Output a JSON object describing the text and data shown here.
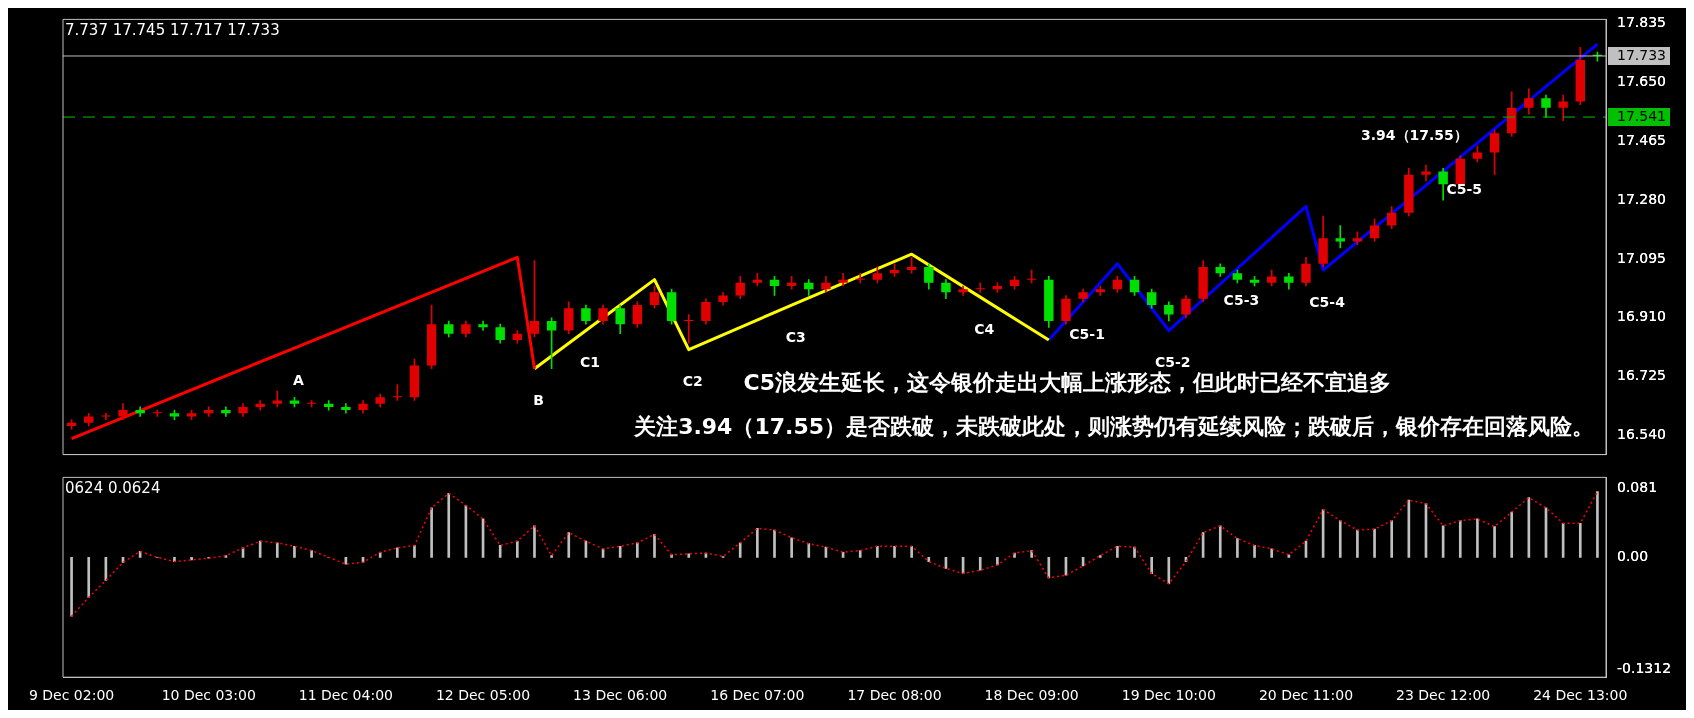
{
  "chart_data": [
    {
      "type": "candlestick",
      "tick_labels": "y",
      "grid": false,
      "legend": false,
      "categories": [
        null,
        null,
        null,
        null,
        null,
        null,
        null,
        null,
        null,
        null,
        null,
        null,
        null,
        null,
        null,
        null,
        null,
        null,
        null,
        null,
        null,
        null,
        null,
        null,
        null,
        null,
        null,
        null,
        null,
        null,
        null,
        null,
        null,
        null,
        null,
        null,
        null,
        null,
        null,
        null,
        null,
        null,
        null,
        null,
        null,
        null,
        null,
        null,
        null,
        null,
        null,
        null,
        null,
        null,
        null,
        null,
        null,
        null,
        null,
        null,
        null,
        null,
        null,
        null,
        null,
        null,
        null,
        null,
        null,
        null,
        null,
        null,
        null,
        null,
        null,
        null,
        null,
        null,
        null,
        null,
        null,
        null,
        null,
        null,
        null,
        null,
        null,
        null,
        null,
        null
      ],
      "ohlc": [
        [
          16.57,
          16.59,
          16.56,
          16.58
        ],
        [
          16.58,
          16.61,
          16.57,
          16.6
        ],
        [
          16.6,
          16.61,
          16.59,
          16.6
        ],
        [
          16.6,
          16.64,
          16.59,
          16.62
        ],
        [
          16.62,
          16.63,
          16.6,
          16.61
        ],
        [
          16.61,
          16.62,
          16.6,
          16.61
        ],
        [
          16.61,
          16.62,
          16.59,
          16.6
        ],
        [
          16.6,
          16.62,
          16.59,
          16.61
        ],
        [
          16.61,
          16.63,
          16.6,
          16.62
        ],
        [
          16.62,
          16.63,
          16.6,
          16.61
        ],
        [
          16.61,
          16.64,
          16.6,
          16.63
        ],
        [
          16.63,
          16.65,
          16.62,
          16.64
        ],
        [
          16.64,
          16.68,
          16.63,
          16.65
        ],
        [
          16.65,
          16.66,
          16.63,
          16.64
        ],
        [
          16.64,
          16.65,
          16.63,
          16.64
        ],
        [
          16.64,
          16.65,
          16.62,
          16.63
        ],
        [
          16.63,
          16.64,
          16.61,
          16.62
        ],
        [
          16.62,
          16.65,
          16.61,
          16.64
        ],
        [
          16.64,
          16.67,
          16.63,
          16.66
        ],
        [
          16.66,
          16.7,
          16.65,
          16.66
        ],
        [
          16.66,
          16.78,
          16.65,
          16.76
        ],
        [
          16.76,
          16.95,
          16.75,
          16.89
        ],
        [
          16.89,
          16.9,
          16.85,
          16.86
        ],
        [
          16.86,
          16.9,
          16.85,
          16.89
        ],
        [
          16.89,
          16.9,
          16.87,
          16.88
        ],
        [
          16.88,
          16.89,
          16.83,
          16.84
        ],
        [
          16.84,
          16.87,
          16.83,
          16.86
        ],
        [
          16.86,
          17.09,
          16.85,
          16.9
        ],
        [
          16.9,
          16.91,
          16.75,
          16.87
        ],
        [
          16.87,
          16.96,
          16.86,
          16.94
        ],
        [
          16.94,
          16.95,
          16.89,
          16.9
        ],
        [
          16.9,
          16.95,
          16.89,
          16.94
        ],
        [
          16.94,
          16.95,
          16.86,
          16.89
        ],
        [
          16.89,
          16.96,
          16.88,
          16.95
        ],
        [
          16.95,
          17.01,
          16.94,
          16.99
        ],
        [
          16.99,
          17.0,
          16.89,
          16.9
        ],
        [
          16.9,
          16.92,
          16.83,
          16.9
        ],
        [
          16.9,
          16.97,
          16.89,
          16.96
        ],
        [
          16.96,
          16.99,
          16.95,
          16.98
        ],
        [
          16.98,
          17.04,
          16.97,
          17.02
        ],
        [
          17.02,
          17.05,
          17.01,
          17.03
        ],
        [
          17.03,
          17.04,
          16.98,
          17.01
        ],
        [
          17.01,
          17.04,
          17.0,
          17.02
        ],
        [
          17.02,
          17.03,
          16.98,
          17.0
        ],
        [
          17.0,
          17.04,
          16.99,
          17.02
        ],
        [
          17.02,
          17.05,
          17.01,
          17.03
        ],
        [
          17.03,
          17.05,
          17.02,
          17.03
        ],
        [
          17.03,
          17.07,
          17.02,
          17.05
        ],
        [
          17.05,
          17.08,
          17.04,
          17.06
        ],
        [
          17.06,
          17.1,
          17.05,
          17.07
        ],
        [
          17.07,
          17.08,
          17.0,
          17.02
        ],
        [
          17.02,
          17.03,
          16.97,
          16.99
        ],
        [
          16.99,
          17.01,
          16.98,
          17.0
        ],
        [
          17.0,
          17.02,
          16.99,
          17.0
        ],
        [
          17.0,
          17.02,
          16.99,
          17.01
        ],
        [
          17.01,
          17.04,
          17.0,
          17.03
        ],
        [
          17.03,
          17.06,
          17.02,
          17.03
        ],
        [
          17.03,
          17.04,
          16.88,
          16.9
        ],
        [
          16.9,
          16.98,
          16.89,
          16.97
        ],
        [
          16.97,
          17.0,
          16.96,
          16.99
        ],
        [
          16.99,
          17.01,
          16.98,
          17.0
        ],
        [
          17.0,
          17.04,
          16.99,
          17.03
        ],
        [
          17.03,
          17.04,
          16.98,
          16.99
        ],
        [
          16.99,
          17.0,
          16.94,
          16.95
        ],
        [
          16.95,
          16.96,
          16.9,
          16.92
        ],
        [
          16.92,
          16.98,
          16.91,
          16.97
        ],
        [
          16.97,
          17.09,
          16.96,
          17.07
        ],
        [
          17.07,
          17.08,
          17.04,
          17.05
        ],
        [
          17.05,
          17.06,
          17.02,
          17.03
        ],
        [
          17.03,
          17.04,
          17.01,
          17.02
        ],
        [
          17.02,
          17.06,
          17.01,
          17.04
        ],
        [
          17.04,
          17.05,
          17.0,
          17.02
        ],
        [
          17.02,
          17.1,
          17.01,
          17.08
        ],
        [
          17.08,
          17.23,
          17.07,
          17.16
        ],
        [
          17.16,
          17.2,
          17.13,
          17.15
        ],
        [
          17.15,
          17.18,
          17.14,
          17.16
        ],
        [
          17.16,
          17.22,
          17.15,
          17.2
        ],
        [
          17.2,
          17.26,
          17.19,
          17.24
        ],
        [
          17.24,
          17.38,
          17.23,
          17.36
        ],
        [
          17.36,
          17.39,
          17.34,
          17.37
        ],
        [
          17.37,
          17.38,
          17.28,
          17.33
        ],
        [
          17.33,
          17.42,
          17.32,
          17.41
        ],
        [
          17.41,
          17.45,
          17.4,
          17.43
        ],
        [
          17.43,
          17.5,
          17.36,
          17.49
        ],
        [
          17.49,
          17.62,
          17.48,
          17.57
        ],
        [
          17.57,
          17.63,
          17.55,
          17.6
        ],
        [
          17.6,
          17.61,
          17.54,
          17.57
        ],
        [
          17.57,
          17.61,
          17.53,
          17.59
        ],
        [
          17.59,
          17.76,
          17.58,
          17.72
        ],
        [
          17.737,
          17.745,
          17.717,
          17.733
        ]
      ],
      "colors": [
        "#e00000",
        "#e00000",
        "#e00000",
        "#e00000",
        "#00e000",
        "#e00000",
        "#00e000",
        "#e00000",
        "#e00000",
        "#00e000",
        "#e00000",
        "#e00000",
        "#e00000",
        "#00e000",
        "#e00000",
        "#00e000",
        "#00e000",
        "#e00000",
        "#e00000",
        "#e00000",
        "#e00000",
        "#e00000",
        "#00e000",
        "#e00000",
        "#00e000",
        "#00e000",
        "#e00000",
        "#e00000",
        "#00e000",
        "#e00000",
        "#00e000",
        "#e00000",
        "#00e000",
        "#e00000",
        "#e00000",
        "#00e000",
        "#e00000",
        "#e00000",
        "#e00000",
        "#e00000",
        "#e00000",
        "#00e000",
        "#e00000",
        "#00e000",
        "#e00000",
        "#e00000",
        "#e00000",
        "#e00000",
        "#e00000",
        "#e00000",
        "#00e000",
        "#00e000",
        "#e00000",
        "#e00000",
        "#e00000",
        "#e00000",
        "#e00000",
        "#00e000",
        "#e00000",
        "#e00000",
        "#e00000",
        "#e00000",
        "#00e000",
        "#00e000",
        "#00e000",
        "#e00000",
        "#e00000",
        "#00e000",
        "#00e000",
        "#00e000",
        "#e00000",
        "#00e000",
        "#e00000",
        "#e00000",
        "#00e000",
        "#e00000",
        "#e00000",
        "#e00000",
        "#e00000",
        "#e00000",
        "#00e000",
        "#e00000",
        "#e00000",
        "#e00000",
        "#e00000",
        "#e00000",
        "#00e000",
        "#e00000",
        "#e00000",
        "#00e000"
      ],
      "series": [
        {
          "type": "line",
          "color": "#ff0000",
          "values": [
            16.53,
            null,
            null,
            null,
            null,
            null,
            null,
            null,
            null,
            null,
            null,
            null,
            null,
            16.815,
            null,
            null,
            null,
            null,
            null,
            null,
            null,
            null,
            null,
            null,
            null,
            null,
            17.1,
            16.75,
            null,
            null,
            null,
            null,
            null,
            null,
            null,
            null,
            null,
            null,
            null,
            null,
            null,
            null,
            null,
            null,
            null,
            null,
            null,
            null,
            null,
            null,
            null,
            null,
            null,
            null,
            null,
            null,
            null,
            null,
            null,
            null,
            null,
            null,
            null,
            null,
            null,
            null,
            null,
            null,
            null,
            null,
            null,
            null,
            null,
            null,
            null,
            null,
            null,
            null,
            null,
            null,
            null,
            null,
            null,
            null,
            null,
            null,
            null,
            null,
            null,
            null
          ],
          "value_labels": [
            null,
            null,
            null,
            null,
            null,
            null,
            null,
            null,
            null,
            null,
            null,
            null,
            null,
            "A",
            null,
            null,
            null,
            null,
            null,
            null,
            null,
            null,
            null,
            null,
            null,
            null,
            null,
            "B",
            null,
            null,
            null,
            null,
            null,
            null,
            null,
            null,
            null,
            null,
            null,
            null,
            null,
            null,
            null,
            null,
            null,
            null,
            null,
            null,
            null,
            null,
            null,
            null,
            null,
            null,
            null,
            null,
            null,
            null,
            null,
            null,
            null,
            null,
            null,
            null,
            null,
            null,
            null,
            null,
            null,
            null,
            null,
            null,
            null,
            null,
            null,
            null,
            null,
            null,
            null,
            null,
            null,
            null,
            null,
            null,
            null,
            null,
            null,
            null,
            null,
            null
          ]
        },
        {
          "type": "line",
          "color": "#ffff00",
          "values": [
            null,
            null,
            null,
            null,
            null,
            null,
            null,
            null,
            null,
            null,
            null,
            null,
            null,
            null,
            null,
            null,
            null,
            null,
            null,
            null,
            null,
            null,
            null,
            null,
            null,
            null,
            null,
            16.75,
            null,
            null,
            16.87,
            null,
            null,
            null,
            17.03,
            null,
            16.81,
            null,
            null,
            null,
            null,
            null,
            16.95,
            null,
            null,
            null,
            null,
            null,
            null,
            17.11,
            null,
            null,
            null,
            16.975,
            null,
            null,
            null,
            16.84,
            null,
            null,
            null,
            null,
            null,
            null,
            null,
            null,
            null,
            null,
            null,
            null,
            null,
            null,
            null,
            null,
            null,
            null,
            null,
            null,
            null,
            null,
            null,
            null,
            null,
            null,
            null,
            null,
            null,
            null,
            null,
            null
          ],
          "value_labels": [
            null,
            null,
            null,
            null,
            null,
            null,
            null,
            null,
            null,
            null,
            null,
            null,
            null,
            null,
            null,
            null,
            null,
            null,
            null,
            null,
            null,
            null,
            null,
            null,
            null,
            null,
            null,
            null,
            null,
            null,
            "C1",
            null,
            null,
            null,
            null,
            null,
            "C2",
            null,
            null,
            null,
            null,
            null,
            "C3",
            null,
            null,
            null,
            null,
            null,
            null,
            null,
            null,
            null,
            null,
            "C4",
            null,
            null,
            null,
            null,
            null,
            null,
            null,
            null,
            null,
            null,
            null,
            null,
            null,
            null,
            null,
            null,
            null,
            null,
            null,
            null,
            null,
            null,
            null,
            null,
            null,
            null,
            null,
            null,
            null,
            null,
            null,
            null,
            null,
            null,
            null,
            null
          ]
        },
        {
          "type": "line",
          "color": "#0000ff",
          "values": [
            null,
            null,
            null,
            null,
            null,
            null,
            null,
            null,
            null,
            null,
            null,
            null,
            null,
            null,
            null,
            null,
            null,
            null,
            null,
            null,
            null,
            null,
            null,
            null,
            null,
            null,
            null,
            null,
            null,
            null,
            null,
            null,
            null,
            null,
            null,
            null,
            null,
            null,
            null,
            null,
            null,
            null,
            null,
            null,
            null,
            null,
            null,
            null,
            null,
            null,
            null,
            null,
            null,
            null,
            null,
            null,
            null,
            16.84,
            null,
            16.96,
            null,
            17.08,
            null,
            null,
            16.87,
            null,
            null,
            null,
            17.065,
            null,
            null,
            null,
            17.26,
            17.06,
            null,
            null,
            null,
            null,
            null,
            null,
            null,
            17.415,
            null,
            null,
            null,
            null,
            null,
            null,
            null,
            17.77
          ],
          "value_labels": [
            null,
            null,
            null,
            null,
            null,
            null,
            null,
            null,
            null,
            null,
            null,
            null,
            null,
            null,
            null,
            null,
            null,
            null,
            null,
            null,
            null,
            null,
            null,
            null,
            null,
            null,
            null,
            null,
            null,
            null,
            null,
            null,
            null,
            null,
            null,
            null,
            null,
            null,
            null,
            null,
            null,
            null,
            null,
            null,
            null,
            null,
            null,
            null,
            null,
            null,
            null,
            null,
            null,
            null,
            null,
            null,
            null,
            null,
            null,
            "C5-1",
            null,
            null,
            null,
            null,
            "C5-2",
            null,
            null,
            null,
            "C5-3",
            null,
            null,
            null,
            null,
            "C5-4",
            null,
            null,
            null,
            null,
            null,
            null,
            null,
            "C5-5",
            null,
            null,
            null,
            null,
            null,
            null,
            null,
            null
          ]
        }
      ],
      "ylim": [
        16.48,
        17.848
      ],
      "yticks": [
        {
          "value": 16.54,
          "label": "16.540"
        },
        {
          "value": 16.725,
          "label": "16.725"
        },
        {
          "value": 16.91,
          "label": "16.910"
        },
        {
          "value": 17.095,
          "label": "17.095"
        },
        {
          "value": 17.28,
          "label": "17.280"
        },
        {
          "value": 17.465,
          "label": "17.465"
        },
        {
          "value": 17.65,
          "label": "17.650"
        },
        {
          "value": 17.835,
          "label": "17.835"
        },
        {
          "value": 17.733,
          "label": "17.733"
        },
        {
          "value": 17.541,
          "label": "17.541"
        }
      ],
      "ref_lines": [
        {
          "axis": "y",
          "value": 17.733,
          "label": null,
          "color": "#c0c0c0",
          "line_style": "solid"
        },
        {
          "axis": "y",
          "value": 17.541,
          "label": "3.94（17.55）",
          "color": "#00c000",
          "line_style": "dashed"
        }
      ],
      "annotations": [
        "7.737 17.745 17.717 17.733",
        "C5浪发生延长，这令银价走出大幅上涨形态，但此时已经不宜追多",
        "关注3.94（17.55）是否跌破，未跌破此处，则涨势仍有延续风险；跌破后，银价存在回落风险。"
      ]
    },
    {
      "type": "bar",
      "grid": false,
      "legend": false,
      "categories": [
        "9 Dec 02:00",
        null,
        null,
        null,
        null,
        null,
        null,
        null,
        "10 Dec 03:00",
        null,
        null,
        null,
        null,
        null,
        null,
        null,
        "11 Dec 04:00",
        null,
        null,
        null,
        null,
        null,
        null,
        null,
        "12 Dec 05:00",
        null,
        null,
        null,
        null,
        null,
        null,
        null,
        "13 Dec 06:00",
        null,
        null,
        null,
        null,
        null,
        null,
        null,
        "16 Dec 07:00",
        null,
        null,
        null,
        null,
        null,
        null,
        null,
        "17 Dec 08:00",
        null,
        null,
        null,
        null,
        null,
        null,
        null,
        "18 Dec 09:00",
        null,
        null,
        null,
        null,
        null,
        null,
        null,
        "19 Dec 10:00",
        null,
        null,
        null,
        null,
        null,
        null,
        null,
        "20 Dec 11:00",
        null,
        null,
        null,
        null,
        null,
        null,
        null,
        "23 Dec 12:00",
        null,
        null,
        null,
        null,
        null,
        null,
        null,
        "24 Dec 13:00",
        null
      ],
      "series": [
        {
          "type": "bar",
          "color": "#c0c0c0",
          "values": [
            -0.069,
            -0.047,
            -0.027,
            -0.006,
            0.007,
            0.0,
            -0.005,
            -0.003,
            -0.001,
            0.002,
            0.011,
            0.019,
            0.017,
            0.013,
            0.008,
            0.0,
            -0.008,
            -0.006,
            0.006,
            0.011,
            0.014,
            0.058,
            0.075,
            0.061,
            0.045,
            0.014,
            0.019,
            0.037,
            0.002,
            0.029,
            0.019,
            0.01,
            0.013,
            0.017,
            0.027,
            0.003,
            0.004,
            0.005,
            0.001,
            0.017,
            0.034,
            0.032,
            0.023,
            0.016,
            0.012,
            0.006,
            0.008,
            0.013,
            0.013,
            0.013,
            -0.005,
            -0.013,
            -0.019,
            -0.015,
            -0.009,
            0.005,
            0.008,
            -0.024,
            -0.021,
            -0.01,
            0.002,
            0.013,
            0.012,
            -0.019,
            -0.031,
            -0.005,
            0.029,
            0.037,
            0.022,
            0.014,
            0.01,
            0.003,
            0.019,
            0.056,
            0.043,
            0.032,
            0.033,
            0.043,
            0.067,
            0.063,
            0.037,
            0.043,
            0.045,
            0.036,
            0.053,
            0.07,
            0.058,
            0.04,
            0.04,
            0.077
          ]
        },
        {
          "type": "line",
          "color": "#ff0000",
          "line_style": "dotted",
          "values": [
            -0.069,
            -0.047,
            -0.027,
            -0.006,
            0.007,
            0.0,
            -0.005,
            -0.003,
            -0.001,
            0.002,
            0.011,
            0.019,
            0.017,
            0.013,
            0.008,
            0.0,
            -0.008,
            -0.006,
            0.006,
            0.011,
            0.014,
            0.058,
            0.075,
            0.061,
            0.045,
            0.014,
            0.019,
            0.037,
            0.002,
            0.029,
            0.019,
            0.01,
            0.013,
            0.017,
            0.027,
            0.003,
            0.004,
            0.005,
            0.001,
            0.017,
            0.034,
            0.032,
            0.023,
            0.016,
            0.012,
            0.006,
            0.008,
            0.013,
            0.013,
            0.013,
            -0.005,
            -0.013,
            -0.019,
            -0.015,
            -0.009,
            0.005,
            0.008,
            -0.024,
            -0.021,
            -0.01,
            0.002,
            0.013,
            0.012,
            -0.019,
            -0.031,
            -0.005,
            0.029,
            0.037,
            0.022,
            0.014,
            0.01,
            0.003,
            0.019,
            0.056,
            0.043,
            0.032,
            0.033,
            0.043,
            0.067,
            0.063,
            0.037,
            0.043,
            0.045,
            0.036,
            0.053,
            0.07,
            0.058,
            0.04,
            0.04,
            0.077
          ]
        }
      ],
      "ylim": [
        -0.1405,
        0.0937
      ],
      "yticks": [
        0.081,
        {
          "value": 0,
          "label": "0.00"
        },
        -0.1312
      ],
      "annotations": [
        "0624 0.0624"
      ]
    }
  ]
}
